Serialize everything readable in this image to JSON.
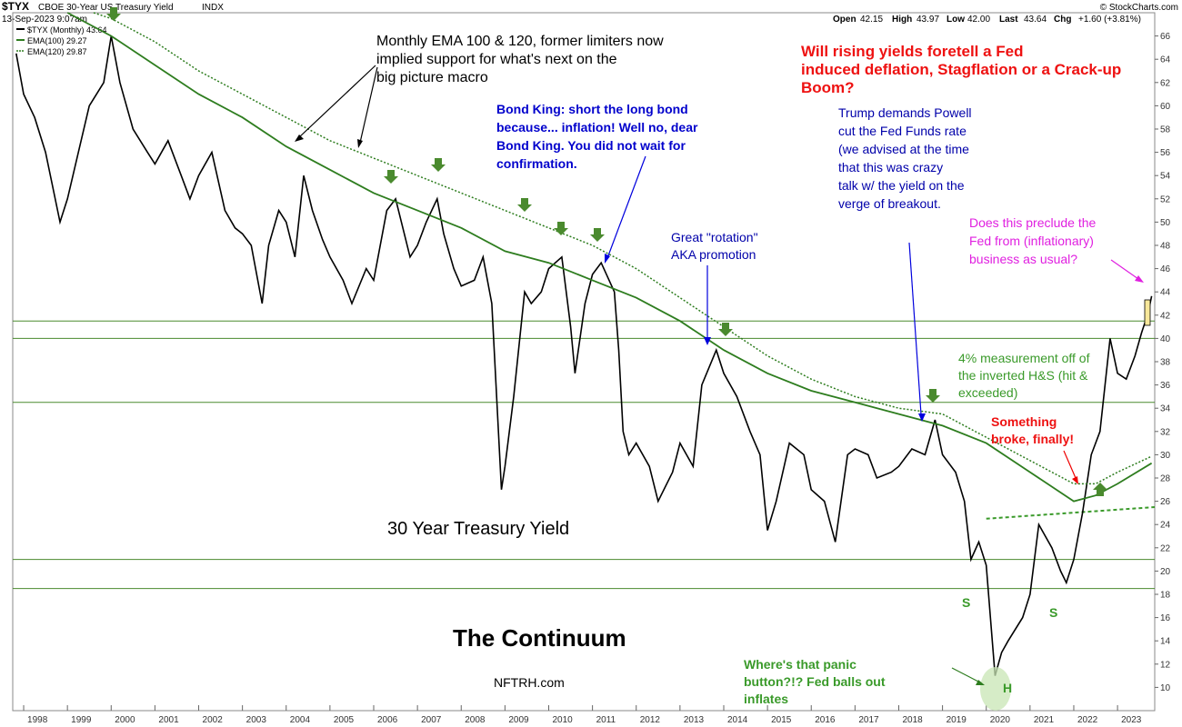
{
  "header": {
    "symbol": "$TYX",
    "description": "CBOE 30-Year US Treasury Yield",
    "exchange": "INDX",
    "date": "13-Sep-2023 9:07am",
    "brand": "© StockCharts.com",
    "ohlc": {
      "open_label": "Open",
      "open": "42.15",
      "high_label": "High",
      "high": "43.97",
      "low_label": "Low",
      "low": "42.00",
      "last_label": "Last",
      "last": "43.64",
      "chg_label": "Chg",
      "chg": "+1.60 (+3.81%)"
    }
  },
  "legend": [
    {
      "label": "$TYX (Monthly) 43.64",
      "color": "#000000"
    },
    {
      "label": "EMA(100) 29.27",
      "color": "#2e7d1f"
    },
    {
      "label": "EMA(120) 29.87",
      "color": "#2e7d1f"
    }
  ],
  "annotations": {
    "ema_note": "Monthly EMA 100 & 120, former limiters now implied support for what's next on the big picture macro",
    "headline": "Will rising yields foretell a Fed induced deflation, Stagflation or a Crack-up Boom?",
    "bond_king": "Bond King: short the long bond because... inflation! Well no, dear Bond King. You did not wait for confirmation.",
    "trump": "Trump demands Powell cut the Fed Funds rate (we advised at the time that this was crazy talk w/ the yield on the verge of breakout.",
    "rotation": "Great \"rotation\" AKA promotion",
    "preclude": "Does this preclude the Fed from (inflationary) business as usual?",
    "measurement": "4% measurement off of the inverted H&S (hit & exceeded)",
    "broke": "Something broke, finally!",
    "chart_title": "30 Year Treasury Yield",
    "continuum": "The Continuum",
    "site": "NFTRH.com",
    "panic": "Where's that panic button?!? Fed balls out inflates",
    "s_left": "S",
    "s_right": "S",
    "h": "H"
  },
  "chart_data": {
    "type": "line",
    "title": "30 Year Treasury Yield",
    "x_range": [
      1997.75,
      2023.85
    ],
    "ylim": [
      8,
      68
    ],
    "y_ticks": [
      10,
      12,
      14,
      16,
      18,
      20,
      22,
      24,
      26,
      28,
      30,
      32,
      34,
      36,
      38,
      40,
      42,
      44,
      46,
      48,
      50,
      52,
      54,
      56,
      58,
      60,
      62,
      64,
      66
    ],
    "x_ticks": [
      "1998",
      "1999",
      "2000",
      "2001",
      "2002",
      "2003",
      "2004",
      "2005",
      "2006",
      "2007",
      "2008",
      "2009",
      "2010",
      "2011",
      "2012",
      "2013",
      "2014",
      "2015",
      "2016",
      "2017",
      "2018",
      "2019",
      "2020",
      "2021",
      "2022",
      "2023"
    ],
    "series": [
      {
        "name": "$TYX (Monthly)",
        "points": [
          [
            1997.83,
            64.5
          ],
          [
            1998.0,
            61
          ],
          [
            1998.25,
            59
          ],
          [
            1998.5,
            56
          ],
          [
            1998.83,
            50
          ],
          [
            1999.0,
            52
          ],
          [
            1999.25,
            56
          ],
          [
            1999.5,
            60
          ],
          [
            1999.83,
            62
          ],
          [
            2000.0,
            66
          ],
          [
            2000.2,
            62
          ],
          [
            2000.5,
            58
          ],
          [
            2000.83,
            56
          ],
          [
            2001.0,
            55
          ],
          [
            2001.3,
            57
          ],
          [
            2001.6,
            54
          ],
          [
            2001.8,
            52
          ],
          [
            2002.0,
            54
          ],
          [
            2002.3,
            56
          ],
          [
            2002.6,
            51
          ],
          [
            2002.83,
            49.5
          ],
          [
            2003.0,
            49
          ],
          [
            2003.2,
            48
          ],
          [
            2003.45,
            43
          ],
          [
            2003.6,
            48
          ],
          [
            2003.83,
            51
          ],
          [
            2004.0,
            50
          ],
          [
            2004.2,
            47
          ],
          [
            2004.4,
            54
          ],
          [
            2004.6,
            51
          ],
          [
            2004.83,
            48.5
          ],
          [
            2005.0,
            47
          ],
          [
            2005.3,
            45
          ],
          [
            2005.5,
            43
          ],
          [
            2005.83,
            46
          ],
          [
            2006.0,
            45
          ],
          [
            2006.3,
            51
          ],
          [
            2006.5,
            52
          ],
          [
            2006.83,
            47
          ],
          [
            2007.0,
            48
          ],
          [
            2007.2,
            50
          ],
          [
            2007.45,
            52
          ],
          [
            2007.6,
            49
          ],
          [
            2007.83,
            46
          ],
          [
            2008.0,
            44.5
          ],
          [
            2008.3,
            45
          ],
          [
            2008.5,
            47
          ],
          [
            2008.7,
            43
          ],
          [
            2008.92,
            27
          ],
          [
            2009.0,
            29
          ],
          [
            2009.2,
            35
          ],
          [
            2009.45,
            44
          ],
          [
            2009.6,
            43
          ],
          [
            2009.83,
            44
          ],
          [
            2010.0,
            46
          ],
          [
            2010.3,
            47
          ],
          [
            2010.5,
            41
          ],
          [
            2010.6,
            37
          ],
          [
            2010.83,
            43
          ],
          [
            2011.0,
            45.5
          ],
          [
            2011.2,
            46.5
          ],
          [
            2011.5,
            44
          ],
          [
            2011.6,
            39
          ],
          [
            2011.7,
            32
          ],
          [
            2011.83,
            30
          ],
          [
            2012.0,
            31
          ],
          [
            2012.3,
            29
          ],
          [
            2012.5,
            26
          ],
          [
            2012.83,
            28.5
          ],
          [
            2013.0,
            31
          ],
          [
            2013.3,
            29
          ],
          [
            2013.5,
            36
          ],
          [
            2013.83,
            39
          ],
          [
            2014.0,
            37
          ],
          [
            2014.3,
            35
          ],
          [
            2014.6,
            32
          ],
          [
            2014.83,
            30
          ],
          [
            2015.0,
            23.5
          ],
          [
            2015.2,
            26
          ],
          [
            2015.5,
            31
          ],
          [
            2015.83,
            30
          ],
          [
            2016.0,
            27
          ],
          [
            2016.3,
            26
          ],
          [
            2016.55,
            22.5
          ],
          [
            2016.83,
            30
          ],
          [
            2017.0,
            30.5
          ],
          [
            2017.3,
            30
          ],
          [
            2017.5,
            28
          ],
          [
            2017.83,
            28.5
          ],
          [
            2018.0,
            29
          ],
          [
            2018.3,
            30.5
          ],
          [
            2018.6,
            30
          ],
          [
            2018.83,
            33
          ],
          [
            2019.0,
            30
          ],
          [
            2019.3,
            28.5
          ],
          [
            2019.5,
            26
          ],
          [
            2019.65,
            21
          ],
          [
            2019.83,
            22.5
          ],
          [
            2020.0,
            20.5
          ],
          [
            2020.2,
            11
          ],
          [
            2020.35,
            13
          ],
          [
            2020.5,
            14
          ],
          [
            2020.83,
            16
          ],
          [
            2021.0,
            18
          ],
          [
            2021.2,
            24
          ],
          [
            2021.5,
            22
          ],
          [
            2021.7,
            20
          ],
          [
            2021.83,
            19
          ],
          [
            2022.0,
            21
          ],
          [
            2022.2,
            25
          ],
          [
            2022.4,
            30
          ],
          [
            2022.6,
            32
          ],
          [
            2022.83,
            40
          ],
          [
            2023.0,
            37
          ],
          [
            2023.2,
            36.5
          ],
          [
            2023.4,
            38.5
          ],
          [
            2023.55,
            40.5
          ],
          [
            2023.7,
            42.2
          ],
          [
            2023.78,
            43.64
          ]
        ]
      },
      {
        "name": "EMA(100)",
        "points": [
          [
            1999.0,
            68
          ],
          [
            2000.0,
            66
          ],
          [
            2001.0,
            63.5
          ],
          [
            2002.0,
            61
          ],
          [
            2003.0,
            59
          ],
          [
            2004.0,
            56.5
          ],
          [
            2005.0,
            54.5
          ],
          [
            2006.0,
            52.5
          ],
          [
            2007.0,
            51
          ],
          [
            2008.0,
            49.5
          ],
          [
            2009.0,
            47.5
          ],
          [
            2010.0,
            46.5
          ],
          [
            2011.0,
            45
          ],
          [
            2012.0,
            43.5
          ],
          [
            2013.0,
            41.5
          ],
          [
            2014.0,
            39
          ],
          [
            2015.0,
            37
          ],
          [
            2016.0,
            35.5
          ],
          [
            2017.0,
            34.5
          ],
          [
            2018.0,
            33.5
          ],
          [
            2019.0,
            32.5
          ],
          [
            2020.0,
            31
          ],
          [
            2021.0,
            28.5
          ],
          [
            2022.0,
            26
          ],
          [
            2022.5,
            26.5
          ],
          [
            2023.0,
            27.5
          ],
          [
            2023.78,
            29.27
          ]
        ]
      },
      {
        "name": "EMA(120)",
        "points": [
          [
            1999.6,
            68
          ],
          [
            2000.0,
            67.5
          ],
          [
            2001.0,
            65.5
          ],
          [
            2002.0,
            63
          ],
          [
            2003.0,
            61
          ],
          [
            2004.0,
            59
          ],
          [
            2005.0,
            57
          ],
          [
            2006.0,
            55.5
          ],
          [
            2007.0,
            54
          ],
          [
            2008.0,
            52.5
          ],
          [
            2009.0,
            51
          ],
          [
            2010.0,
            49.5
          ],
          [
            2011.0,
            48
          ],
          [
            2012.0,
            46
          ],
          [
            2013.0,
            43.5
          ],
          [
            2014.0,
            41
          ],
          [
            2015.0,
            38.5
          ],
          [
            2016.0,
            36.5
          ],
          [
            2017.0,
            35
          ],
          [
            2018.0,
            34
          ],
          [
            2019.0,
            33.5
          ],
          [
            2020.0,
            31.5
          ],
          [
            2021.0,
            29.5
          ],
          [
            2022.0,
            27.5
          ],
          [
            2022.5,
            27.5
          ],
          [
            2023.0,
            28.5
          ],
          [
            2023.78,
            29.87
          ]
        ]
      }
    ],
    "support_levels": [
      41.5,
      40,
      34.5,
      21,
      18.5
    ],
    "neckline": [
      [
        2020.0,
        24.5
      ],
      [
        2023.85,
        25.5
      ]
    ]
  }
}
